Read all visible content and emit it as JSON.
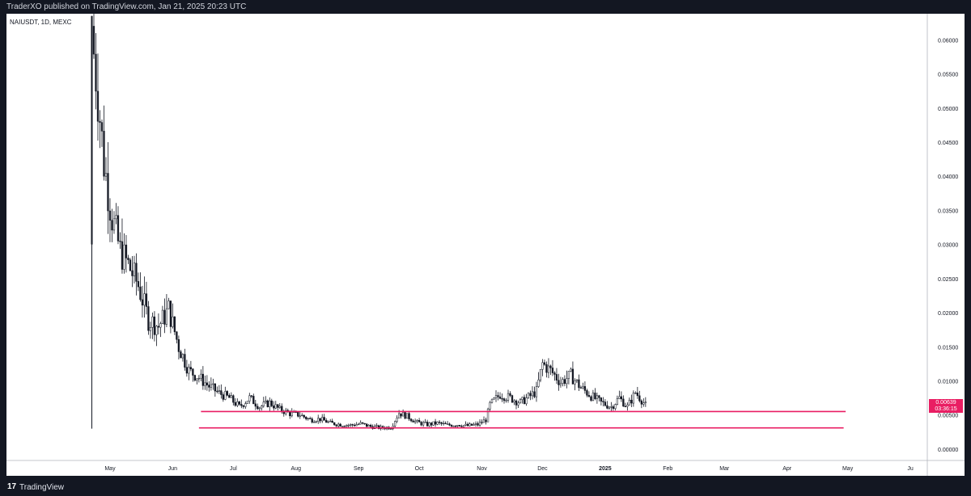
{
  "header": {
    "publisher_text": "TraderXO published on TradingView.com, Jan 21, 2025 20:23 UTC"
  },
  "chart_header": {
    "symbol_text": "NAIUSDT, 1D, MEXC"
  },
  "footer": {
    "brand": "TradingView",
    "logo_glyph": "17"
  },
  "last_price": {
    "value": "0.00639",
    "countdown": "03:36:15",
    "color": "#e91e63"
  },
  "colors": {
    "background": "#131722",
    "chart_bg": "#ffffff",
    "candle": "#131722",
    "hline": "#e91e63",
    "axis_text": "#131722"
  },
  "chart_data": {
    "type": "candlestick",
    "title": "",
    "ylim": [
      0,
      0.064
    ],
    "y_ticks": [
      "0.06000",
      "0.05500",
      "0.05000",
      "0.04500",
      "0.04000",
      "0.03500",
      "0.03000",
      "0.02500",
      "0.02000",
      "0.01500",
      "0.01000",
      "0.00500",
      "0.00000"
    ],
    "x_ticks": [
      "May",
      "Jun",
      "Jul",
      "Aug",
      "Sep",
      "Oct",
      "Nov",
      "Dec",
      "2025",
      "Feb",
      "Mar",
      "Apr",
      "May",
      "Ju"
    ],
    "x_range": [
      "2024-04-19",
      "2025-06-11"
    ],
    "grid": false,
    "price_path": [
      [
        "2024-04-23",
        0.058
      ],
      [
        "2024-04-25",
        0.052
      ],
      [
        "2024-04-28",
        0.042
      ],
      [
        "2024-05-02",
        0.034
      ],
      [
        "2024-05-06",
        0.029
      ],
      [
        "2024-05-10",
        0.027
      ],
      [
        "2024-05-15",
        0.024
      ],
      [
        "2024-05-20",
        0.019
      ],
      [
        "2024-05-25",
        0.018
      ],
      [
        "2024-05-30",
        0.0205
      ],
      [
        "2024-06-04",
        0.015
      ],
      [
        "2024-06-09",
        0.0115
      ],
      [
        "2024-06-14",
        0.0105
      ],
      [
        "2024-06-19",
        0.0092
      ],
      [
        "2024-06-24",
        0.0082
      ],
      [
        "2024-06-29",
        0.0075
      ],
      [
        "2024-07-04",
        0.0062
      ],
      [
        "2024-07-09",
        0.0075
      ],
      [
        "2024-07-14",
        0.0062
      ],
      [
        "2024-07-19",
        0.0068
      ],
      [
        "2024-07-24",
        0.0058
      ],
      [
        "2024-07-29",
        0.0052
      ],
      [
        "2024-08-03",
        0.005
      ],
      [
        "2024-08-08",
        0.0043
      ],
      [
        "2024-08-13",
        0.0044
      ],
      [
        "2024-08-18",
        0.0038
      ],
      [
        "2024-08-23",
        0.0036
      ],
      [
        "2024-08-28",
        0.0035
      ],
      [
        "2024-09-02",
        0.0037
      ],
      [
        "2024-09-07",
        0.0033
      ],
      [
        "2024-09-12",
        0.0031
      ],
      [
        "2024-09-17",
        0.0032
      ],
      [
        "2024-09-21",
        0.0053
      ],
      [
        "2024-09-25",
        0.0048
      ],
      [
        "2024-09-30",
        0.0039
      ],
      [
        "2024-10-05",
        0.0036
      ],
      [
        "2024-10-10",
        0.0038
      ],
      [
        "2024-10-15",
        0.0035
      ],
      [
        "2024-10-20",
        0.0036
      ],
      [
        "2024-10-25",
        0.0034
      ],
      [
        "2024-10-30",
        0.0036
      ],
      [
        "2024-11-03",
        0.0043
      ],
      [
        "2024-11-05",
        0.0065
      ],
      [
        "2024-11-10",
        0.008
      ],
      [
        "2024-11-15",
        0.0075
      ],
      [
        "2024-11-20",
        0.0068
      ],
      [
        "2024-11-25",
        0.0078
      ],
      [
        "2024-11-28",
        0.0085
      ],
      [
        "2024-12-01",
        0.0125
      ],
      [
        "2024-12-05",
        0.0115
      ],
      [
        "2024-12-10",
        0.0098
      ],
      [
        "2024-12-15",
        0.0108
      ],
      [
        "2024-12-20",
        0.009
      ],
      [
        "2024-12-25",
        0.0078
      ],
      [
        "2024-12-30",
        0.0068
      ],
      [
        "2025-01-04",
        0.0062
      ],
      [
        "2025-01-08",
        0.0075
      ],
      [
        "2025-01-12",
        0.0062
      ],
      [
        "2025-01-16",
        0.0083
      ],
      [
        "2025-01-19",
        0.0072
      ],
      [
        "2025-01-21",
        0.0064
      ]
    ],
    "horizontal_lines": [
      {
        "price": 0.0055,
        "from": "2024-06-15",
        "to": "2025-04-30"
      },
      {
        "price": 0.0031,
        "from": "2024-06-14",
        "to": "2025-04-29"
      }
    ]
  }
}
